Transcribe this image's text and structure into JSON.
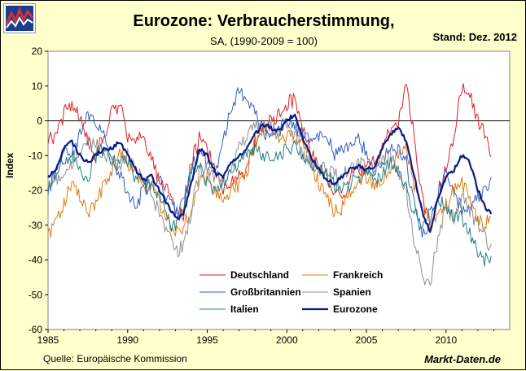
{
  "logo_colors": {
    "red": "#d43030",
    "blue": "#1c3c8c",
    "frame": "#7f9fc8"
  },
  "header": {
    "title": "Eurozone: Verbraucherstimmung,",
    "subtitle": "SA, (1990-2009 = 100)",
    "stand": "Stand: Dez. 2012"
  },
  "footer": {
    "source": "Quelle: Europäische Kommission",
    "brand": "Markt-Daten.de"
  },
  "chart_data": {
    "type": "line",
    "title": "Eurozone: Verbraucherstimmung,",
    "subtitle": "SA, (1990-2009 = 100)",
    "xlabel": "",
    "ylabel": "Index",
    "xlim": [
      1985,
      2014
    ],
    "ylim": [
      -60,
      20
    ],
    "x_ticks": [
      1985,
      1990,
      1995,
      2000,
      2005,
      2010
    ],
    "y_ticks": [
      20,
      10,
      0,
      -10,
      -20,
      -30,
      -40,
      -50,
      -60
    ],
    "grid": false,
    "zero_line": true,
    "plot_background": "#ffffff",
    "legend_placement": "bottom-center",
    "series": [
      {
        "name": "Deutschland",
        "color": "#e02020",
        "width": 1,
        "x": [
          1985.0,
          1985.5,
          1986.0,
          1986.5,
          1987.0,
          1987.5,
          1988.0,
          1988.5,
          1989.0,
          1989.5,
          1990.0,
          1990.5,
          1991.0,
          1991.5,
          1992.0,
          1992.5,
          1993.0,
          1993.5,
          1994.0,
          1994.5,
          1995.0,
          1995.5,
          1996.0,
          1996.5,
          1997.0,
          1997.5,
          1998.0,
          1998.5,
          1999.0,
          1999.5,
          2000.0,
          2000.5,
          2001.0,
          2001.5,
          2002.0,
          2002.5,
          2003.0,
          2003.5,
          2004.0,
          2004.5,
          2005.0,
          2005.5,
          2006.0,
          2006.5,
          2007.0,
          2007.5,
          2008.0,
          2008.5,
          2009.0,
          2009.5,
          2010.0,
          2010.5,
          2011.0,
          2011.5,
          2012.0,
          2012.5,
          2012.9
        ],
        "y": [
          -5,
          -5,
          2,
          5,
          0,
          -5,
          -10,
          -4,
          2,
          5,
          -5,
          -5,
          -5,
          -10,
          -18,
          -20,
          -25,
          -27,
          -12,
          -5,
          -8,
          -15,
          -20,
          -18,
          -16,
          -14,
          -7,
          -2,
          0,
          2,
          5,
          6,
          -2,
          -10,
          -12,
          -16,
          -20,
          -22,
          -16,
          -15,
          -14,
          -12,
          -8,
          -3,
          0,
          10,
          -5,
          -22,
          -30,
          -22,
          -14,
          -5,
          10,
          8,
          0,
          -5,
          -10
        ]
      },
      {
        "name": "Frankreich",
        "color": "#e07a10",
        "width": 1,
        "x": [
          1985.0,
          1985.5,
          1986.0,
          1986.5,
          1987.0,
          1987.5,
          1988.0,
          1988.5,
          1989.0,
          1989.5,
          1990.0,
          1990.5,
          1991.0,
          1991.5,
          1992.0,
          1992.5,
          1993.0,
          1993.5,
          1994.0,
          1994.5,
          1995.0,
          1995.5,
          1996.0,
          1996.5,
          1997.0,
          1997.5,
          1998.0,
          1998.5,
          1999.0,
          1999.5,
          2000.0,
          2000.5,
          2001.0,
          2001.5,
          2002.0,
          2002.5,
          2003.0,
          2003.5,
          2004.0,
          2004.5,
          2005.0,
          2005.5,
          2006.0,
          2006.5,
          2007.0,
          2007.5,
          2008.0,
          2008.5,
          2009.0,
          2009.5,
          2010.0,
          2010.5,
          2011.0,
          2011.5,
          2012.0,
          2012.5,
          2012.9
        ],
        "y": [
          -33,
          -30,
          -24,
          -18,
          -22,
          -26,
          -24,
          -18,
          -14,
          -10,
          -12,
          -15,
          -20,
          -18,
          -24,
          -28,
          -32,
          -30,
          -25,
          -18,
          -16,
          -20,
          -24,
          -20,
          -18,
          -14,
          -6,
          -2,
          -2,
          -5,
          -5,
          -4,
          -8,
          -12,
          -18,
          -22,
          -26,
          -25,
          -21,
          -17,
          -16,
          -18,
          -17,
          -14,
          -10,
          -8,
          -18,
          -26,
          -30,
          -28,
          -24,
          -20,
          -18,
          -22,
          -28,
          -30,
          -26
        ]
      },
      {
        "name": "Großbritannien",
        "color": "#3060c8",
        "width": 1,
        "x": [
          1985.0,
          1985.5,
          1986.0,
          1986.5,
          1987.0,
          1987.5,
          1988.0,
          1988.5,
          1989.0,
          1989.5,
          1990.0,
          1990.5,
          1991.0,
          1991.5,
          1992.0,
          1992.5,
          1993.0,
          1993.5,
          1994.0,
          1994.5,
          1995.0,
          1995.5,
          1996.0,
          1996.5,
          1997.0,
          1997.5,
          1998.0,
          1998.5,
          1999.0,
          1999.5,
          2000.0,
          2000.5,
          2001.0,
          2001.5,
          2002.0,
          2002.5,
          2003.0,
          2003.5,
          2004.0,
          2004.5,
          2005.0,
          2005.5,
          2006.0,
          2006.5,
          2007.0,
          2007.5,
          2008.0,
          2008.5,
          2009.0,
          2009.5,
          2010.0,
          2010.5,
          2011.0,
          2011.5,
          2012.0,
          2012.5,
          2012.9
        ],
        "y": [
          -20,
          -15,
          -10,
          -8,
          -4,
          2,
          0,
          -2,
          -10,
          -16,
          -20,
          -24,
          -20,
          -18,
          -16,
          -22,
          -26,
          -24,
          -14,
          -8,
          -12,
          -14,
          -6,
          4,
          8,
          6,
          2,
          -2,
          -6,
          -3,
          0,
          -2,
          -4,
          -6,
          -4,
          -4,
          -10,
          -8,
          -6,
          -4,
          -10,
          -14,
          -12,
          -8,
          -8,
          -12,
          -24,
          -32,
          -30,
          -20,
          -16,
          -20,
          -26,
          -24,
          -22,
          -20,
          -15
        ]
      },
      {
        "name": "Spanien",
        "color": "#909090",
        "width": 1,
        "x": [
          1985.0,
          1985.5,
          1986.0,
          1986.5,
          1987.0,
          1987.5,
          1988.0,
          1988.5,
          1989.0,
          1989.5,
          1990.0,
          1990.5,
          1991.0,
          1991.5,
          1992.0,
          1992.5,
          1993.0,
          1993.5,
          1994.0,
          1994.5,
          1995.0,
          1995.5,
          1996.0,
          1996.5,
          1997.0,
          1997.5,
          1998.0,
          1998.5,
          1999.0,
          1999.5,
          2000.0,
          2000.5,
          2001.0,
          2001.5,
          2002.0,
          2002.5,
          2003.0,
          2003.5,
          2004.0,
          2004.5,
          2005.0,
          2005.5,
          2006.0,
          2006.5,
          2007.0,
          2007.5,
          2008.0,
          2008.5,
          2009.0,
          2009.5,
          2010.0,
          2010.5,
          2011.0,
          2011.5,
          2012.0,
          2012.5,
          2012.9
        ],
        "y": [
          -19,
          -17,
          -14,
          -12,
          -8,
          -6,
          -7,
          -10,
          -12,
          -14,
          -10,
          -14,
          -18,
          -22,
          -26,
          -32,
          -38,
          -36,
          -26,
          -15,
          -14,
          -16,
          -18,
          -14,
          -8,
          -4,
          -2,
          0,
          -2,
          -4,
          -2,
          -4,
          -10,
          -12,
          -14,
          -14,
          -16,
          -15,
          -14,
          -12,
          -14,
          -14,
          -12,
          -10,
          -14,
          -20,
          -34,
          -44,
          -47,
          -33,
          -25,
          -28,
          -22,
          -26,
          -30,
          -34,
          -38
        ]
      },
      {
        "name": "Italien",
        "color": "#208080",
        "width": 1,
        "x": [
          1985.0,
          1985.5,
          1986.0,
          1986.5,
          1987.0,
          1987.5,
          1988.0,
          1988.5,
          1989.0,
          1989.5,
          1990.0,
          1990.5,
          1991.0,
          1991.5,
          1992.0,
          1992.5,
          1993.0,
          1993.5,
          1994.0,
          1994.5,
          1995.0,
          1995.5,
          1996.0,
          1996.5,
          1997.0,
          1997.5,
          1998.0,
          1998.5,
          1999.0,
          1999.5,
          2000.0,
          2000.5,
          2001.0,
          2001.5,
          2002.0,
          2002.5,
          2003.0,
          2003.5,
          2004.0,
          2004.5,
          2005.0,
          2005.5,
          2006.0,
          2006.5,
          2007.0,
          2007.5,
          2008.0,
          2008.5,
          2009.0,
          2009.5,
          2010.0,
          2010.5,
          2011.0,
          2011.5,
          2012.0,
          2012.5,
          2012.9
        ],
        "y": [
          -20,
          -14,
          -12,
          -10,
          -14,
          -16,
          -10,
          -8,
          -12,
          -12,
          -12,
          -18,
          -16,
          -20,
          -22,
          -28,
          -31,
          -26,
          -14,
          -12,
          -18,
          -20,
          -18,
          -14,
          -12,
          -10,
          -8,
          -10,
          -12,
          -10,
          -8,
          -8,
          -10,
          -12,
          -14,
          -16,
          -18,
          -20,
          -18,
          -16,
          -14,
          -18,
          -16,
          -12,
          -14,
          -20,
          -26,
          -30,
          -26,
          -22,
          -24,
          -28,
          -28,
          -32,
          -38,
          -40,
          -40
        ]
      },
      {
        "name": "Eurozone",
        "color": "#0a1a80",
        "width": 2.2,
        "x": [
          1985.0,
          1985.5,
          1986.0,
          1986.5,
          1987.0,
          1987.5,
          1988.0,
          1988.5,
          1989.0,
          1989.5,
          1990.0,
          1990.5,
          1991.0,
          1991.5,
          1992.0,
          1992.5,
          1993.0,
          1993.5,
          1994.0,
          1994.5,
          1995.0,
          1995.5,
          1996.0,
          1996.5,
          1997.0,
          1997.5,
          1998.0,
          1998.5,
          1999.0,
          1999.5,
          2000.0,
          2000.5,
          2001.0,
          2001.5,
          2002.0,
          2002.5,
          2003.0,
          2003.5,
          2004.0,
          2004.5,
          2005.0,
          2005.5,
          2006.0,
          2006.5,
          2007.0,
          2007.5,
          2008.0,
          2008.5,
          2009.0,
          2009.5,
          2010.0,
          2010.5,
          2011.0,
          2011.5,
          2012.0,
          2012.5,
          2012.9
        ],
        "y": [
          -16,
          -14,
          -8,
          -6,
          -10,
          -12,
          -10,
          -8,
          -8,
          -6,
          -10,
          -14,
          -17,
          -16,
          -20,
          -24,
          -28,
          -27,
          -18,
          -8,
          -10,
          -15,
          -16,
          -12,
          -10,
          -8,
          -4,
          -1,
          -2,
          -3,
          0,
          2,
          -5,
          -10,
          -14,
          -17,
          -18,
          -16,
          -14,
          -13,
          -14,
          -13,
          -8,
          -4,
          -2,
          -6,
          -16,
          -26,
          -32,
          -22,
          -16,
          -14,
          -10,
          -12,
          -20,
          -25,
          -27
        ]
      }
    ]
  }
}
